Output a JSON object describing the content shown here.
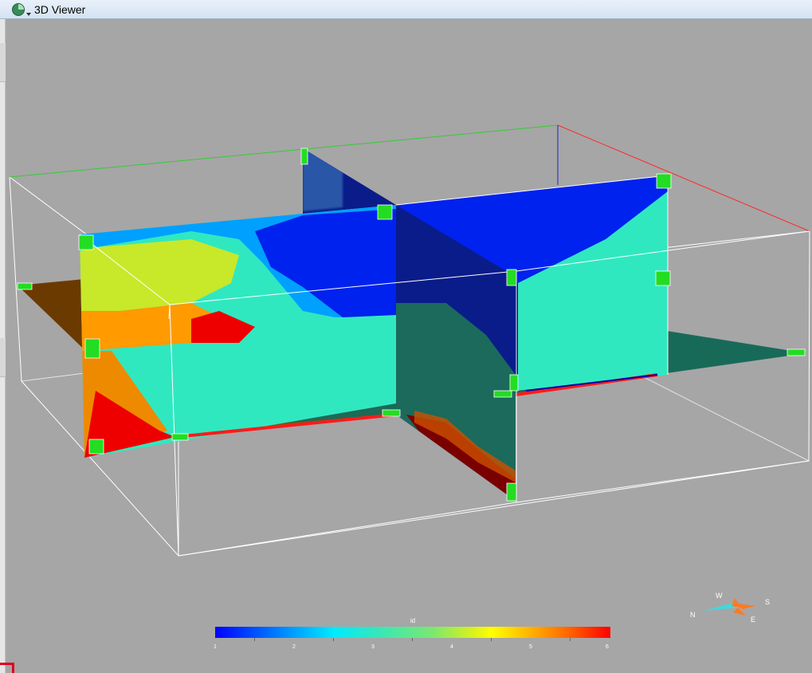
{
  "window": {
    "title": "3D Viewer",
    "icon": "viewer-globe-icon"
  },
  "colorbar": {
    "title": "id",
    "ticks": [
      "1",
      "2",
      "3",
      "4",
      "5",
      "6"
    ],
    "colors": [
      "#0000ff",
      "#00a0ff",
      "#00eaff",
      "#7ae870",
      "#ffff00",
      "#ff6000",
      "#ff0000"
    ]
  },
  "compass": {
    "w": "W",
    "s": "S",
    "n": "N",
    "e": "E"
  },
  "scene_colors": {
    "axis_x": "#ff2a2a",
    "axis_y": "#33cc33",
    "axis_z": "#2222cc",
    "box": "#ffffff",
    "handle": "#22dd22"
  }
}
